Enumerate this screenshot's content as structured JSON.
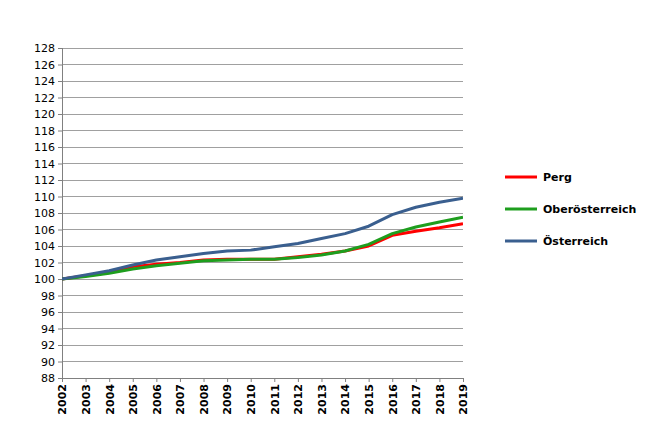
{
  "chart_data": {
    "type": "line",
    "x": [
      2002,
      2003,
      2004,
      2005,
      2006,
      2007,
      2008,
      2009,
      2010,
      2011,
      2012,
      2013,
      2014,
      2015,
      2016,
      2017,
      2018,
      2019
    ],
    "series": [
      {
        "name": "Perg",
        "color": "#ff0000",
        "values": [
          100,
          100.4,
          100.8,
          101.5,
          101.8,
          102.0,
          102.3,
          102.4,
          102.4,
          102.4,
          102.7,
          103.0,
          103.4,
          104.0,
          105.3,
          105.8,
          106.2,
          106.7
        ]
      },
      {
        "name": "Oberösterreich",
        "color": "#1e9e1e",
        "values": [
          100,
          100.3,
          100.7,
          101.2,
          101.6,
          101.9,
          102.2,
          102.3,
          102.4,
          102.4,
          102.6,
          102.9,
          103.4,
          104.2,
          105.5,
          106.3,
          106.9,
          107.5
        ]
      },
      {
        "name": "Österreich",
        "color": "#3a5f8f",
        "values": [
          100,
          100.5,
          101.0,
          101.7,
          102.3,
          102.7,
          103.1,
          103.4,
          103.5,
          103.9,
          104.3,
          104.9,
          105.5,
          106.4,
          107.8,
          108.7,
          109.3,
          109.8
        ]
      }
    ],
    "xlim": [
      2002,
      2019
    ],
    "xticks": [
      2002,
      2003,
      2004,
      2005,
      2006,
      2007,
      2008,
      2009,
      2010,
      2011,
      2012,
      2013,
      2014,
      2015,
      2016,
      2017,
      2018,
      2019
    ],
    "ylim": [
      88,
      128
    ],
    "yticks": [
      88,
      90,
      92,
      94,
      96,
      98,
      100,
      102,
      104,
      106,
      108,
      110,
      112,
      114,
      116,
      118,
      120,
      122,
      124,
      126,
      128
    ],
    "grid": true,
    "legend": "right"
  }
}
